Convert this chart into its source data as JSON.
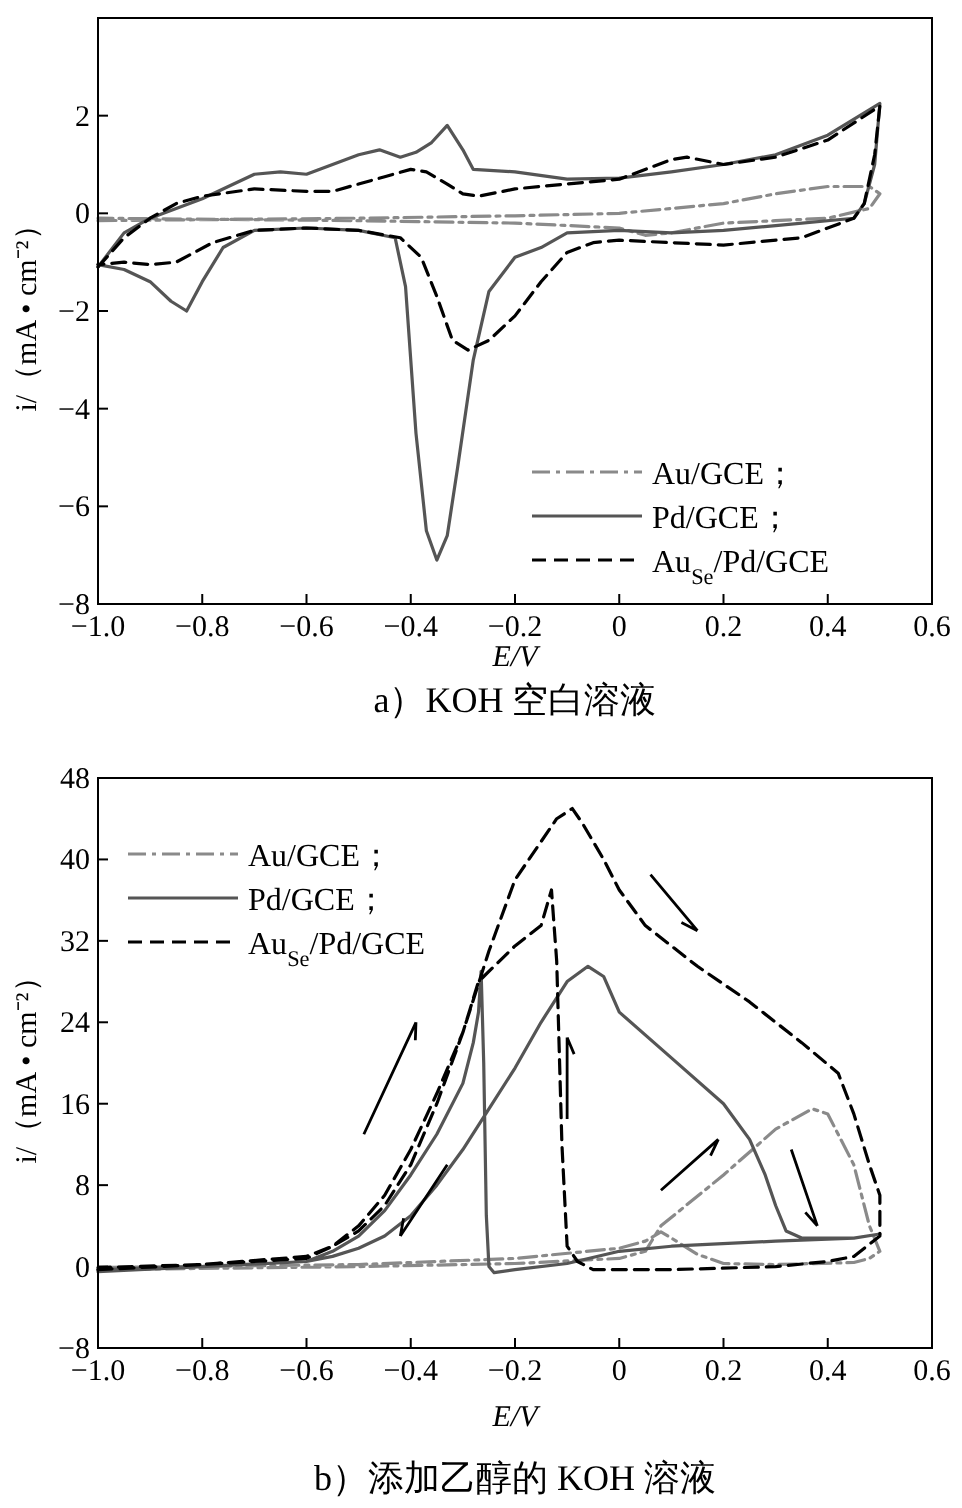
{
  "chart_data": [
    {
      "type": "line",
      "title": "a）KOH 空白溶液",
      "xlabel": "E/V",
      "ylabel": "i/（mA • cm⁻²）",
      "xlim": [
        -1.0,
        0.6
      ],
      "ylim": [
        -8,
        4
      ],
      "xticks": [
        {
          "value": -1.0,
          "label": "−1.0"
        },
        {
          "value": -0.8,
          "label": "−0.8"
        },
        {
          "value": -0.6,
          "label": "−0.6"
        },
        {
          "value": -0.4,
          "label": "−0.4"
        },
        {
          "value": -0.2,
          "label": "−0.2"
        },
        0,
        0.2,
        0.4,
        0.6
      ],
      "yticks": [
        {
          "value": -8,
          "label": "−8"
        },
        {
          "value": -6,
          "label": "−6"
        },
        {
          "value": -4,
          "label": "−4"
        },
        {
          "value": -2,
          "label": "−2"
        },
        0,
        2
      ],
      "legend": "bottom right",
      "grid": false,
      "series": [
        {
          "name": "Au/GCE；",
          "color": "#8a8a8a",
          "line_style": "dashdot",
          "x": [
            -1.0,
            -0.5,
            -0.2,
            0,
            0.2,
            0.3,
            0.4,
            0.48,
            0.5,
            0.48,
            0.4,
            0.3,
            0.2,
            0.1,
            0.05,
            0,
            -0.2,
            -0.5,
            -1.0
          ],
          "values": [
            -0.15,
            -0.1,
            -0.05,
            0,
            0.2,
            0.4,
            0.55,
            0.55,
            0.4,
            0.1,
            -0.1,
            -0.15,
            -0.2,
            -0.4,
            -0.45,
            -0.3,
            -0.2,
            -0.15,
            -0.1
          ]
        },
        {
          "name": "Pd/GCE；",
          "color": "#555555",
          "line_style": "solid",
          "x": [
            -1.0,
            -0.95,
            -0.9,
            -0.8,
            -0.7,
            -0.65,
            -0.6,
            -0.55,
            -0.5,
            -0.46,
            -0.42,
            -0.39,
            -0.36,
            -0.33,
            -0.3,
            -0.28,
            -0.2,
            -0.1,
            0,
            0.1,
            0.2,
            0.3,
            0.4,
            0.5,
            0.49,
            0.47,
            0.45,
            0.3,
            0.2,
            0.1,
            0,
            -0.1,
            -0.15,
            -0.2,
            -0.25,
            -0.28,
            -0.31,
            -0.33,
            -0.35,
            -0.37,
            -0.39,
            -0.41,
            -0.43,
            -0.5,
            -0.6,
            -0.7,
            -0.76,
            -0.8,
            -0.83,
            -0.86,
            -0.9,
            -0.95,
            -1.0
          ],
          "values": [
            -1.1,
            -0.4,
            -0.1,
            0.3,
            0.8,
            0.85,
            0.8,
            1.0,
            1.2,
            1.3,
            1.15,
            1.25,
            1.45,
            1.8,
            1.3,
            0.9,
            0.85,
            0.7,
            0.72,
            0.85,
            1.0,
            1.2,
            1.6,
            2.25,
            1.0,
            0.2,
            -0.1,
            -0.25,
            -0.35,
            -0.4,
            -0.35,
            -0.4,
            -0.7,
            -0.9,
            -1.6,
            -3.0,
            -5.2,
            -6.6,
            -7.1,
            -6.5,
            -4.5,
            -1.5,
            -0.5,
            -0.35,
            -0.3,
            -0.35,
            -0.7,
            -1.4,
            -2.0,
            -1.8,
            -1.4,
            -1.15,
            -1.05
          ]
        },
        {
          "name": "Au$_{Se}$/Pd/GCE",
          "color": "#000000",
          "line_style": "dashed",
          "x": [
            -1.0,
            -0.95,
            -0.9,
            -0.85,
            -0.8,
            -0.7,
            -0.6,
            -0.55,
            -0.5,
            -0.45,
            -0.4,
            -0.37,
            -0.33,
            -0.3,
            -0.27,
            -0.2,
            -0.1,
            0,
            0.1,
            0.13,
            0.2,
            0.3,
            0.4,
            0.5,
            0.49,
            0.47,
            0.45,
            0.35,
            0.2,
            0.1,
            0,
            -0.05,
            -0.1,
            -0.15,
            -0.2,
            -0.25,
            -0.29,
            -0.32,
            -0.35,
            -0.38,
            -0.42,
            -0.5,
            -0.6,
            -0.7,
            -0.78,
            -0.85,
            -0.9,
            -0.95,
            -1.0
          ],
          "values": [
            -1.1,
            -0.5,
            -0.1,
            0.2,
            0.35,
            0.5,
            0.45,
            0.45,
            0.6,
            0.75,
            0.9,
            0.85,
            0.6,
            0.4,
            0.35,
            0.5,
            0.6,
            0.7,
            1.1,
            1.15,
            1.0,
            1.15,
            1.5,
            2.2,
            1.2,
            0.2,
            -0.1,
            -0.5,
            -0.65,
            -0.6,
            -0.55,
            -0.6,
            -0.8,
            -1.4,
            -2.1,
            -2.6,
            -2.8,
            -2.6,
            -1.7,
            -0.9,
            -0.5,
            -0.35,
            -0.3,
            -0.35,
            -0.6,
            -1.0,
            -1.05,
            -1.0,
            -1.05
          ]
        }
      ]
    },
    {
      "type": "line",
      "title": "b）添加乙醇的 KOH 溶液",
      "xlabel": "E/V",
      "ylabel": "i/（mA • cm⁻²）",
      "xlim": [
        -1.0,
        0.6
      ],
      "ylim": [
        -8,
        48
      ],
      "xticks": [
        {
          "value": -1.0,
          "label": "−1.0"
        },
        {
          "value": -0.8,
          "label": "−0.8"
        },
        {
          "value": -0.6,
          "label": "−0.6"
        },
        {
          "value": -0.4,
          "label": "−0.4"
        },
        {
          "value": -0.2,
          "label": "−0.2"
        },
        0,
        0.2,
        0.4,
        0.6
      ],
      "yticks": [
        {
          "value": -8,
          "label": "−8"
        },
        0,
        8,
        16,
        24,
        32,
        40,
        48
      ],
      "legend": "top left",
      "grid": false,
      "series": [
        {
          "name": "Au/GCE；",
          "color": "#8a8a8a",
          "line_style": "dashdot",
          "x": [
            -1.0,
            -0.5,
            -0.2,
            0,
            0.05,
            0.08,
            0.2,
            0.3,
            0.37,
            0.4,
            0.45,
            0.48,
            0.5,
            0.48,
            0.45,
            0.3,
            0.2,
            0.15,
            0.1,
            0.08,
            0.05,
            0,
            -0.2,
            -0.5,
            -1.0
          ],
          "values": [
            -0.3,
            0,
            0.3,
            0.8,
            1.5,
            4,
            9,
            13.5,
            15.5,
            15,
            10,
            4,
            1.5,
            0.8,
            0.4,
            0.2,
            0.3,
            1.2,
            2.8,
            3.4,
            2.5,
            1.8,
            0.8,
            0.2,
            -0.1
          ]
        },
        {
          "name": "Pd/GCE；",
          "color": "#555555",
          "line_style": "solid",
          "x": [
            -1.0,
            -0.8,
            -0.6,
            -0.55,
            -0.5,
            -0.45,
            -0.4,
            -0.35,
            -0.3,
            -0.28,
            -0.27,
            -0.265,
            -0.26,
            -0.255,
            -0.25,
            -0.24,
            -0.2,
            -0.1,
            0,
            0.1,
            0.3,
            0.45,
            0.5,
            0.45,
            0.35,
            0.32,
            0.3,
            0.28,
            0.25,
            0.2,
            0.1,
            0,
            -0.03,
            -0.06,
            -0.1,
            -0.15,
            -0.2,
            -0.25,
            -0.3,
            -0.35,
            -0.4,
            -0.45,
            -0.5,
            -0.55,
            -0.6,
            -0.8,
            -1.0
          ],
          "values": [
            -0.5,
            0,
            0.5,
            1.5,
            3,
            5.5,
            9,
            13,
            18,
            22,
            25,
            29,
            20,
            5,
            0,
            -0.6,
            -0.3,
            0.3,
            1.5,
            2,
            2.5,
            2.8,
            3.2,
            2.8,
            2.8,
            3.5,
            6,
            9,
            12.5,
            16,
            20.5,
            25,
            28.5,
            29.5,
            28,
            24,
            19.5,
            15.5,
            11.5,
            8,
            5,
            3,
            1.8,
            1,
            0.5,
            0,
            -0.3
          ]
        },
        {
          "name": "Au$_{Se}$/Pd/GCE",
          "color": "#000000",
          "line_style": "dashed",
          "x": [
            -1.0,
            -0.8,
            -0.6,
            -0.55,
            -0.5,
            -0.45,
            -0.4,
            -0.35,
            -0.3,
            -0.27,
            -0.2,
            -0.15,
            -0.13,
            -0.12,
            -0.11,
            -0.1,
            -0.08,
            -0.05,
            0.1,
            0.3,
            0.4,
            0.45,
            0.5,
            0.5,
            0.48,
            0.45,
            0.42,
            0.35,
            0.25,
            0.15,
            0.05,
            0,
            -0.03,
            -0.07,
            -0.09,
            -0.12,
            -0.2,
            -0.25,
            -0.3,
            -0.35,
            -0.4,
            -0.45,
            -0.5,
            -0.55,
            -0.6,
            -0.8,
            -1.0
          ],
          "values": [
            -0.3,
            0.2,
            0.8,
            2,
            4,
            7,
            11.5,
            17,
            23,
            28,
            31.5,
            33.5,
            37,
            30,
            12,
            2,
            0.5,
            -0.3,
            -0.3,
            0,
            0.5,
            1,
            3,
            7,
            10,
            15,
            19,
            22,
            26,
            29.5,
            33.5,
            37,
            40,
            43.5,
            45,
            44,
            38,
            31,
            23,
            16,
            10,
            6,
            3.5,
            2,
            1,
            0.2,
            -0.1
          ]
        }
      ]
    }
  ]
}
